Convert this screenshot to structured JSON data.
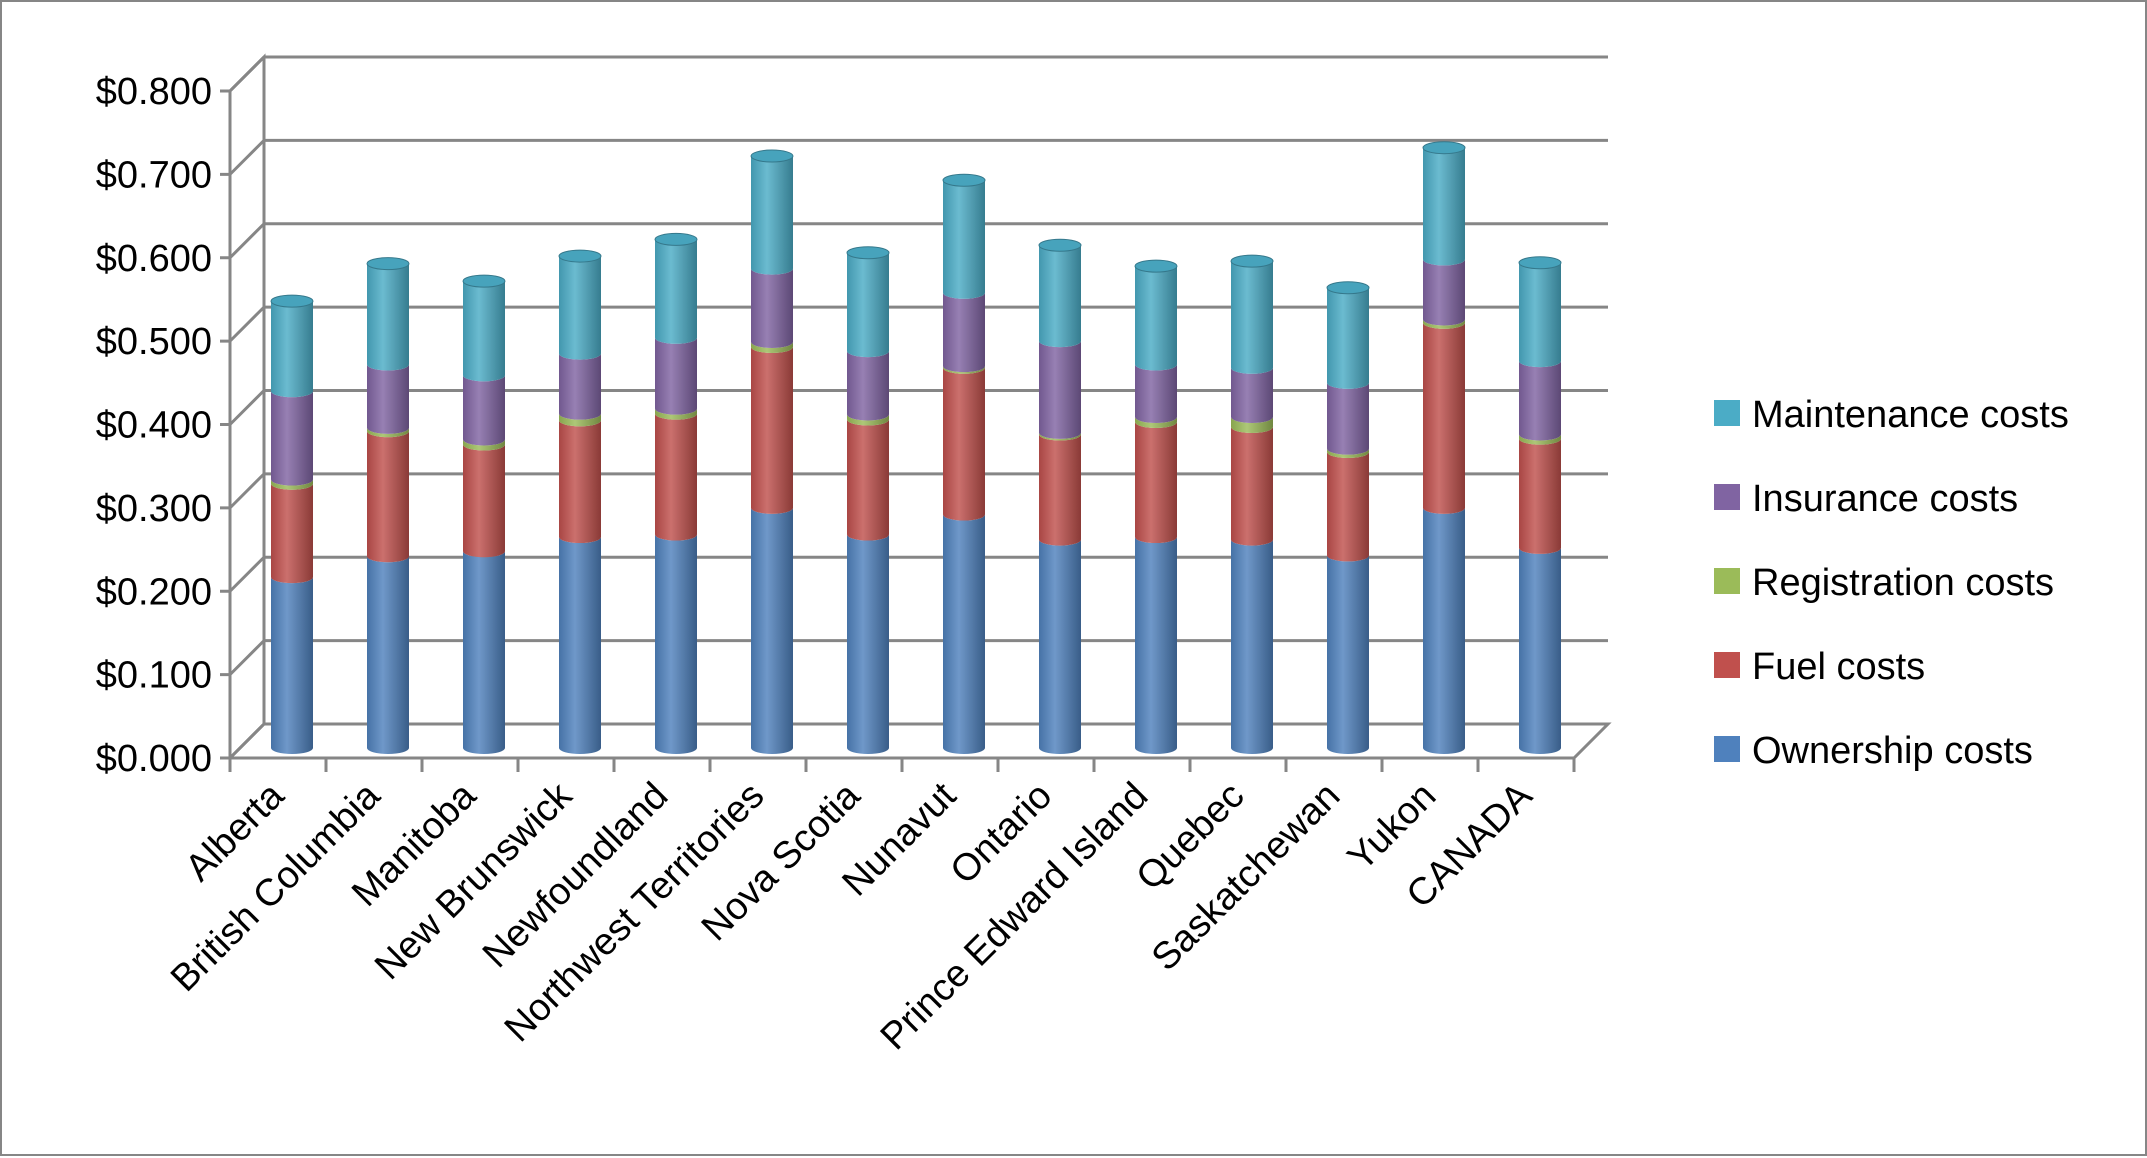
{
  "chart_data": {
    "type": "bar",
    "stacked": true,
    "style": "3d-cylinder",
    "title": "",
    "xlabel": "",
    "ylabel": "",
    "ylim": [
      0,
      0.8
    ],
    "yticks": [
      "$0.000",
      "$0.100",
      "$0.200",
      "$0.300",
      "$0.400",
      "$0.500",
      "$0.600",
      "$0.700",
      "$0.800"
    ],
    "grid": true,
    "legend_position": "right",
    "categories": [
      "Alberta",
      "British Columbia",
      "Manitoba",
      "New Brunswick",
      "Newfoundland",
      "Northwest Territories",
      "Nova Scotia",
      "Nunavut",
      "Ontario",
      "Prince Edward Island",
      "Quebec",
      "Saskatchewan",
      "Yukon",
      "CANADA"
    ],
    "series": [
      {
        "name": "Ownership costs",
        "color": "#4F81BD",
        "values": [
          0.205,
          0.23,
          0.236,
          0.253,
          0.256,
          0.288,
          0.256,
          0.28,
          0.25,
          0.253,
          0.25,
          0.231,
          0.288,
          0.24
        ]
      },
      {
        "name": "Fuel costs",
        "color": "#C0504D",
        "values": [
          0.112,
          0.15,
          0.128,
          0.14,
          0.145,
          0.193,
          0.138,
          0.176,
          0.126,
          0.138,
          0.135,
          0.124,
          0.222,
          0.131
        ]
      },
      {
        "name": "Registration costs",
        "color": "#9BBB59",
        "values": [
          0.005,
          0.004,
          0.006,
          0.008,
          0.006,
          0.006,
          0.006,
          0.002,
          0.002,
          0.006,
          0.012,
          0.004,
          0.004,
          0.005
        ]
      },
      {
        "name": "Insurance costs",
        "color": "#8064A2",
        "values": [
          0.106,
          0.076,
          0.077,
          0.072,
          0.085,
          0.088,
          0.076,
          0.088,
          0.11,
          0.063,
          0.059,
          0.079,
          0.072,
          0.088
        ]
      },
      {
        "name": "Maintenance costs",
        "color": "#4BACC6",
        "values": [
          0.108,
          0.121,
          0.113,
          0.117,
          0.118,
          0.135,
          0.118,
          0.135,
          0.115,
          0.118,
          0.128,
          0.114,
          0.134,
          0.118
        ]
      }
    ]
  }
}
